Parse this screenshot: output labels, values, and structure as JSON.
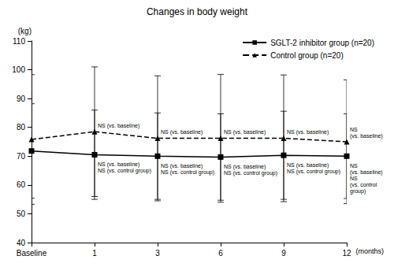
{
  "chart_data": {
    "type": "line",
    "title": "Changes in body weight",
    "y_label": "(kg)",
    "x_label": "(months)",
    "categories": [
      "Baseline",
      "1",
      "3",
      "6",
      "9",
      "12"
    ],
    "ylim": [
      40,
      110
    ],
    "yticks": [
      40,
      50,
      60,
      70,
      80,
      90,
      100,
      110
    ],
    "grid": false,
    "legend": "upper right",
    "series": [
      {
        "name": "SGLT-2 inhibitor group (n=20)",
        "color": "#000000",
        "marker": "square",
        "line_style": "solid",
        "values": [
          71.8,
          70.5,
          70.0,
          69.7,
          70.3,
          70.0
        ],
        "errors": [
          16.4,
          15.5,
          15.0,
          15.0,
          15.3,
          14.7
        ],
        "annotations": [
          null,
          [
            "NS (vs. baseline)",
            "NS (vs. control group)"
          ],
          [
            "NS (vs. baseline)",
            "NS (vs. control group)"
          ],
          [
            "NS (vs. baseline)",
            "NS (vs. control group)"
          ],
          [
            "NS (vs. baseline)",
            "NS (vs. control group)"
          ],
          [
            "NS",
            "(vs. baseline)",
            "NS",
            "(vs. control",
            "group)"
          ]
        ]
      },
      {
        "name": "Control group (n=20)",
        "color": "#000000",
        "marker": "triangle",
        "line_style": "dashed",
        "values": [
          75.8,
          78.5,
          76.2,
          76.2,
          76.2,
          75.0
        ],
        "errors": [
          22.5,
          22.5,
          21.7,
          22.2,
          22.0,
          21.5
        ],
        "annotations": [
          null,
          [
            "NS (vs. baseline)"
          ],
          [
            "NS (vs. baseline)"
          ],
          [
            "NS (vs. baseline)"
          ],
          [
            "NS (vs. baseline)"
          ],
          [
            "NS",
            "(vs. baseline)"
          ]
        ]
      }
    ]
  }
}
